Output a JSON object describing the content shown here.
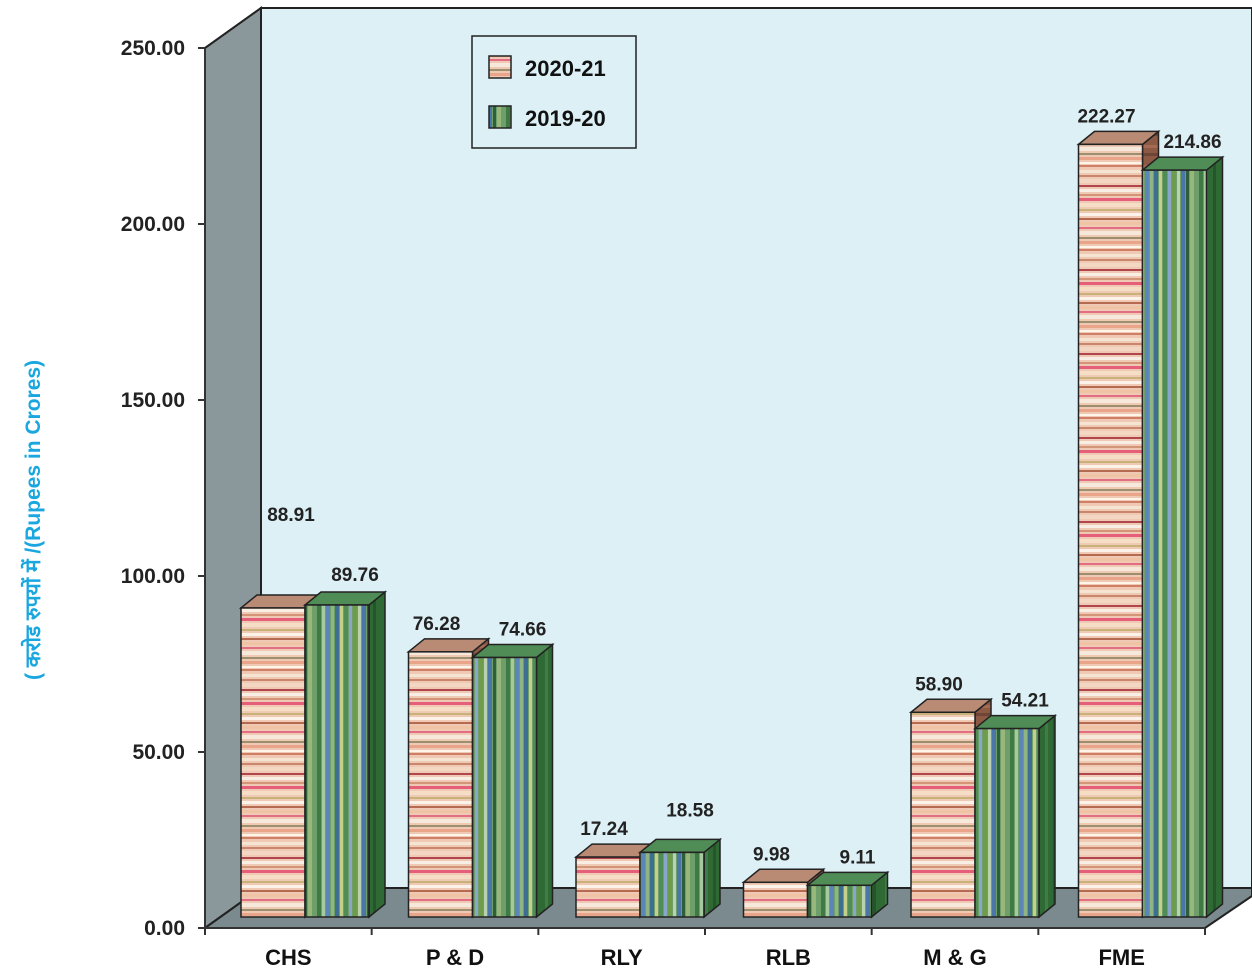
{
  "chart_data": {
    "type": "bar",
    "title": "",
    "xlabel": "",
    "ylabel": "( करोड रुपयों में  /(Rupees in Crores)",
    "categories": [
      "CHS",
      "P & D",
      "RLY",
      "RLB",
      "M & G",
      "FME"
    ],
    "series": [
      {
        "name": "2020-21",
        "values": [
          88.91,
          76.28,
          17.24,
          9.98,
          58.9,
          222.27
        ]
      },
      {
        "name": "2019-20",
        "values": [
          89.76,
          74.66,
          18.58,
          9.11,
          54.21,
          214.86
        ]
      }
    ],
    "value_labels": [
      [
        "88.91",
        "76.28",
        "17.24",
        "9.98",
        "58.90",
        "222.27"
      ],
      [
        "89.76",
        "74.66",
        "18.58",
        "9.11",
        "54.21",
        "214.86"
      ]
    ],
    "ylim": [
      0,
      250
    ],
    "yticks": [
      "0.00",
      "50.00",
      "100.00",
      "150.00",
      "200.00",
      "250.00"
    ],
    "legend_position": "top-left",
    "grid": false,
    "style": "3d-bar",
    "colors": {
      "wall": "#dcf0f6",
      "floor": "#7b8a8f",
      "side_wall": "#8a979b",
      "series_2020_21": "#e8b49e",
      "series_2019_20": "#5f9c5a",
      "ylabel": "#1aa7e0"
    }
  }
}
